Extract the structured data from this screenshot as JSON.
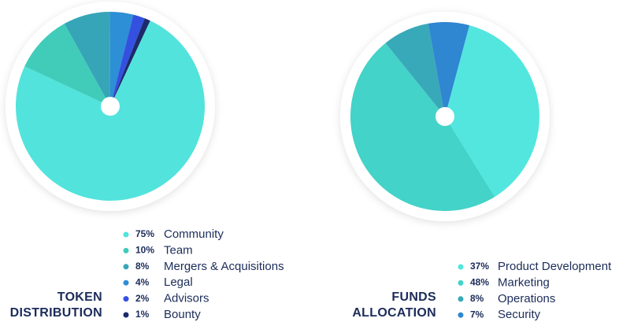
{
  "chart_data": [
    {
      "type": "pie",
      "title": "TOKEN DISTRIBUTION",
      "categories": [
        "Community",
        "Team",
        "Mergers & Acquisitions",
        "Legal",
        "Advisors",
        "Bounty"
      ],
      "values": [
        75,
        10,
        8,
        4,
        2,
        1
      ],
      "value_labels": [
        "75%",
        "10%",
        "8%",
        "4%",
        "2%",
        "1%"
      ],
      "colors": [
        "#52e3dc",
        "#40ccb9",
        "#36a5b8",
        "#2d8fd5",
        "#3450e0",
        "#1b2a6b"
      ]
    },
    {
      "type": "pie",
      "title": "FUNDS ALLOCATION",
      "categories": [
        "Product Development",
        "Marketing",
        "Operations",
        "Security"
      ],
      "values": [
        37,
        48,
        8,
        7
      ],
      "value_labels": [
        "37%",
        "48%",
        "8%",
        "7%"
      ],
      "colors": [
        "#52e6df",
        "#43d3c8",
        "#38a9b8",
        "#2f86d1"
      ]
    }
  ]
}
